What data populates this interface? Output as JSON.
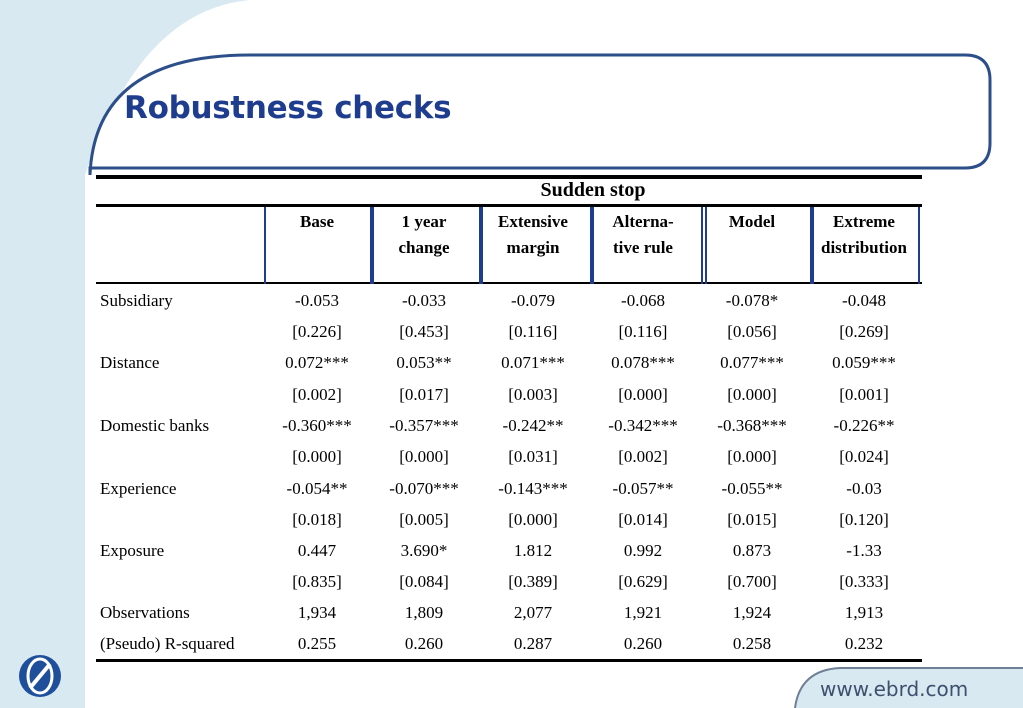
{
  "slide": {
    "title": "Robustness checks",
    "website": "www.ebrd.com"
  },
  "table": {
    "super_header": "Sudden stop",
    "columns": [
      {
        "line1": "Base",
        "line2": ""
      },
      {
        "line1": "1 year",
        "line2": "change"
      },
      {
        "line1": "Extensive",
        "line2": "margin"
      },
      {
        "line1": "Alterna-",
        "line2": "tive rule"
      },
      {
        "line1": "Model",
        "line2": ""
      },
      {
        "line1": "Extreme",
        "line2": "distribution"
      }
    ],
    "rows": [
      {
        "label": "Subsidiary",
        "values": [
          "-0.053",
          "-0.033",
          "-0.079",
          "-0.068",
          "-0.078*",
          "-0.048"
        ]
      },
      {
        "label": "",
        "values": [
          "[0.226]",
          "[0.453]",
          "[0.116]",
          "[0.116]",
          "[0.056]",
          "[0.269]"
        ]
      },
      {
        "label": "Distance",
        "values": [
          "0.072***",
          "0.053**",
          "0.071***",
          "0.078***",
          "0.077***",
          "0.059***"
        ]
      },
      {
        "label": "",
        "values": [
          "[0.002]",
          "[0.017]",
          "[0.003]",
          "[0.000]",
          "[0.000]",
          "[0.001]"
        ]
      },
      {
        "label": "Domestic banks",
        "values": [
          "-0.360***",
          "-0.357***",
          "-0.242**",
          "-0.342***",
          "-0.368***",
          "-0.226**"
        ]
      },
      {
        "label": "",
        "values": [
          "[0.000]",
          "[0.000]",
          "[0.031]",
          "[0.002]",
          "[0.000]",
          "[0.024]"
        ]
      },
      {
        "label": "Experience",
        "values": [
          "-0.054**",
          "-0.070***",
          "-0.143***",
          "-0.057**",
          "-0.055**",
          "-0.03"
        ]
      },
      {
        "label": "",
        "values": [
          "[0.018]",
          "[0.005]",
          "[0.000]",
          "[0.014]",
          "[0.015]",
          "[0.120]"
        ]
      },
      {
        "label": "Exposure",
        "values": [
          "0.447",
          "3.690*",
          "1.812",
          "0.992",
          "0.873",
          "-1.33"
        ]
      },
      {
        "label": "",
        "values": [
          "[0.835]",
          "[0.084]",
          "[0.389]",
          "[0.629]",
          "[0.700]",
          "[0.333]"
        ]
      },
      {
        "label": "Observations",
        "values": [
          "1,934",
          "1,809",
          "2,077",
          "1,921",
          "1,924",
          "1,913"
        ]
      },
      {
        "label": "(Pseudo) R-squared",
        "values": [
          "0.255",
          "0.260",
          "0.287",
          "0.260",
          "0.258",
          "0.232"
        ]
      }
    ]
  }
}
